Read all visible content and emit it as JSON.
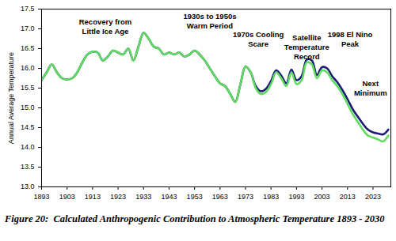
{
  "chart_data": {
    "type": "line",
    "title": "Figure 20:  Calculated Anthropogenic Contribution to Atmospheric Temperature 1893 - 2030",
    "y_label": "Annual Average Temperature",
    "x": [
      1893,
      1895,
      1897,
      1899,
      1901,
      1903,
      1905,
      1907,
      1909,
      1911,
      1913,
      1915,
      1917,
      1919,
      1921,
      1923,
      1925,
      1927,
      1929,
      1931,
      1933,
      1935,
      1937,
      1939,
      1941,
      1943,
      1945,
      1947,
      1949,
      1951,
      1953,
      1955,
      1957,
      1959,
      1961,
      1963,
      1965,
      1967,
      1969,
      1971,
      1973,
      1975,
      1977,
      1979,
      1981,
      1983,
      1985,
      1987,
      1989,
      1991,
      1993,
      1995,
      1997,
      1999,
      2001,
      2003,
      2005,
      2007,
      2009,
      2011,
      2013,
      2015,
      2017,
      2019,
      2021,
      2023,
      2025,
      2027,
      2029
    ],
    "series": [
      {
        "color": "#1c1c78",
        "values": [
          15.7,
          15.9,
          16.1,
          15.9,
          15.75,
          15.72,
          15.75,
          15.9,
          16.15,
          16.35,
          16.42,
          16.4,
          16.2,
          16.3,
          16.45,
          16.4,
          16.35,
          16.5,
          16.2,
          16.55,
          16.9,
          16.75,
          16.55,
          16.5,
          16.35,
          16.4,
          16.35,
          16.4,
          16.3,
          16.35,
          16.45,
          16.35,
          16.2,
          16.0,
          15.8,
          15.62,
          15.55,
          15.35,
          15.15,
          15.6,
          16.05,
          15.9,
          15.55,
          15.42,
          15.48,
          15.68,
          15.95,
          15.82,
          15.62,
          15.97,
          15.7,
          15.8,
          16.22,
          16.2,
          15.83,
          16.03,
          16.0,
          15.8,
          15.65,
          15.45,
          15.22,
          14.97,
          14.78,
          14.6,
          14.45,
          14.38,
          14.35,
          14.33,
          14.45
        ]
      },
      {
        "color": "#5fdc5f",
        "values": [
          15.7,
          15.9,
          16.1,
          15.9,
          15.75,
          15.72,
          15.75,
          15.9,
          16.15,
          16.35,
          16.42,
          16.4,
          16.2,
          16.3,
          16.45,
          16.4,
          16.35,
          16.5,
          16.2,
          16.55,
          16.9,
          16.75,
          16.55,
          16.5,
          16.35,
          16.4,
          16.35,
          16.4,
          16.3,
          16.35,
          16.45,
          16.35,
          16.2,
          16.0,
          15.8,
          15.62,
          15.55,
          15.35,
          15.15,
          15.6,
          16.05,
          15.9,
          15.5,
          15.35,
          15.4,
          15.6,
          15.9,
          15.75,
          15.55,
          15.9,
          15.6,
          15.7,
          16.15,
          16.1,
          15.75,
          15.95,
          15.9,
          15.7,
          15.55,
          15.35,
          15.1,
          14.85,
          14.65,
          14.45,
          14.3,
          14.25,
          14.2,
          14.15,
          14.3
        ]
      }
    ],
    "xlim": [
      1893,
      2030
    ],
    "xticks": [
      1893,
      1903,
      1913,
      1923,
      1933,
      1943,
      1953,
      1963,
      1973,
      1983,
      1993,
      2003,
      2013,
      2023
    ],
    "ylim": [
      13,
      17.5
    ],
    "yticks": [
      {
        "value": 13,
        "label": "13.0"
      },
      13.5,
      {
        "value": 14,
        "label": "14.0"
      },
      14.5,
      {
        "value": 15,
        "label": "15.0"
      },
      15.5,
      {
        "value": 16,
        "label": "16.0"
      },
      16.5,
      {
        "value": 17,
        "label": "17.0"
      },
      17.5
    ],
    "grid": false,
    "annotations": [
      {
        "text": "Recovery from\nLittle Ice Age",
        "x": 1918,
        "y": 17.06
      },
      {
        "text": "1930s to 1950s\nWarm Period",
        "x": 1959,
        "y": 17.21
      },
      {
        "text": "1970s Cooling\nScare",
        "x": 1978,
        "y": 16.74
      },
      {
        "text": "Satellite\nTemperature\nRecord",
        "x": 1997,
        "y": 16.55
      },
      {
        "text": "1998 El Nino\nPeak",
        "x": 2014,
        "y": 16.74
      },
      {
        "text": "Next\nMinimum",
        "x": 2022,
        "y": 15.5
      }
    ]
  }
}
